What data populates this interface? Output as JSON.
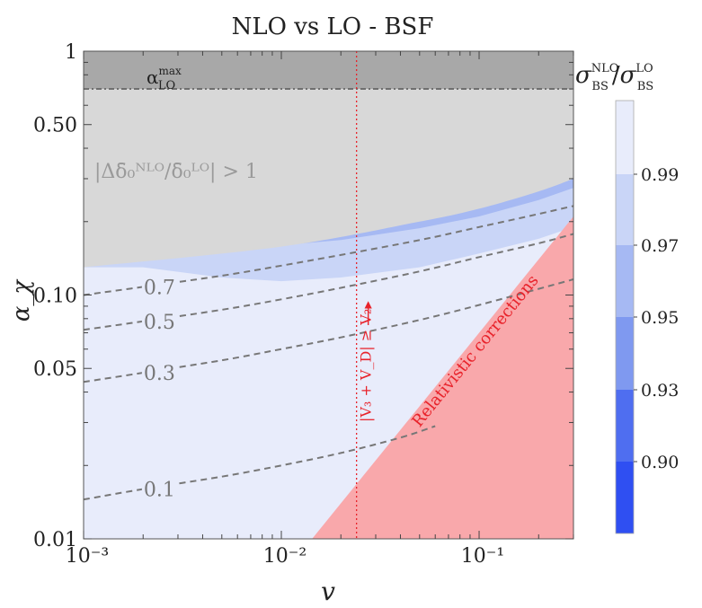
{
  "chart_data": {
    "type": "contour",
    "title": "NLO vs LO - BSF",
    "xlabel": "v",
    "ylabel": "α_χ",
    "x_scale": "log",
    "y_scale": "log",
    "xlim": [
      0.001,
      0.3
    ],
    "ylim": [
      0.01,
      1
    ],
    "x_ticks": [
      {
        "value": 0.001,
        "label": "10⁻³"
      },
      {
        "value": 0.01,
        "label": "10⁻²"
      },
      {
        "value": 0.1,
        "label": "10⁻¹"
      }
    ],
    "y_ticks": [
      {
        "value": 0.01,
        "label": "0.01"
      },
      {
        "value": 0.05,
        "label": "0.05"
      },
      {
        "value": 0.1,
        "label": "0.10"
      },
      {
        "value": 0.5,
        "label": "0.50"
      },
      {
        "value": 1,
        "label": "1"
      }
    ],
    "colorbar": {
      "label_main": "σ",
      "label_sub_num": "BS",
      "label_sup_num": "NLO",
      "label_sub_den": "BS",
      "label_sup_den": "LO",
      "levels": [
        0.9,
        0.93,
        0.95,
        0.97,
        0.99
      ],
      "level_labels": [
        "0.90",
        "0.93",
        "0.95",
        "0.97",
        "0.99"
      ],
      "colors": [
        "#2f4ff2",
        "#4f6ef0",
        "#7f99f0",
        "#a6b9f3",
        "#c9d5f7",
        "#e8ecfb"
      ]
    },
    "dashed_contours": [
      {
        "label": "0.7",
        "points": [
          [
            0.001,
            0.1
          ],
          [
            0.002,
            0.108
          ],
          [
            0.005,
            0.12
          ],
          [
            0.01,
            0.132
          ],
          [
            0.02,
            0.146
          ],
          [
            0.05,
            0.168
          ],
          [
            0.1,
            0.19
          ],
          [
            0.2,
            0.215
          ],
          [
            0.3,
            0.232
          ]
        ]
      },
      {
        "label": "0.5",
        "points": [
          [
            0.001,
            0.072
          ],
          [
            0.002,
            0.078
          ],
          [
            0.005,
            0.087
          ],
          [
            0.01,
            0.096
          ],
          [
            0.02,
            0.107
          ],
          [
            0.05,
            0.125
          ],
          [
            0.1,
            0.143
          ],
          [
            0.2,
            0.163
          ],
          [
            0.3,
            0.178
          ]
        ]
      },
      {
        "label": "0.3",
        "points": [
          [
            0.001,
            0.044
          ],
          [
            0.002,
            0.048
          ],
          [
            0.005,
            0.054
          ],
          [
            0.01,
            0.06
          ],
          [
            0.02,
            0.067
          ],
          [
            0.05,
            0.079
          ],
          [
            0.1,
            0.091
          ],
          [
            0.2,
            0.106
          ],
          [
            0.3,
            0.116
          ]
        ]
      },
      {
        "label": "0.1",
        "points": [
          [
            0.001,
            0.0145
          ],
          [
            0.002,
            0.016
          ],
          [
            0.005,
            0.018
          ],
          [
            0.01,
            0.02
          ],
          [
            0.02,
            0.0225
          ],
          [
            0.04,
            0.026
          ],
          [
            0.06,
            0.029
          ]
        ]
      }
    ],
    "upper_contour": {
      "points": [
        [
          0.001,
          0.13
        ],
        [
          0.01,
          0.158
        ],
        [
          0.05,
          0.2
        ],
        [
          0.1,
          0.226
        ],
        [
          0.2,
          0.266
        ],
        [
          0.3,
          0.3
        ]
      ]
    },
    "regions": {
      "alpha_max": 0.7,
      "alpha_max_label": "α",
      "alpha_max_sup": "max",
      "alpha_max_sub": "LO",
      "delta_region_label": "|Δδ̄₀ᴺᴸᴼ/δ̄₀ᴸᴼ| > 1",
      "relativistic_label": "Relativistic corrections",
      "relativistic_boundary": [
        [
          0.0143,
          0.01
        ],
        [
          0.3,
          0.21
        ]
      ],
      "v_line": 0.024,
      "v_line_label": "|V₃ + V_D| ≥ V₂"
    }
  }
}
